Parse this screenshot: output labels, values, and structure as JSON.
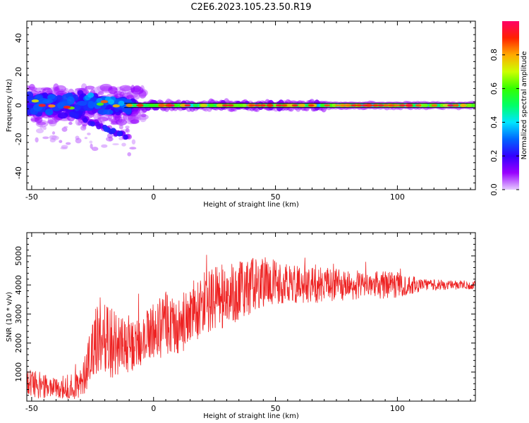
{
  "title": "C2E6.2023.105.23.50.R19",
  "chart_data": [
    {
      "type": "heatmap",
      "xlabel": "Height of straight line (km)",
      "ylabel": "Frequency (Hz)",
      "xlim": [
        -52,
        132
      ],
      "ylim": [
        -50,
        50
      ],
      "xticks": [
        -50,
        0,
        50,
        100
      ],
      "yticks": [
        40,
        20,
        0,
        -20,
        -40
      ],
      "colorbar": {
        "label": "Normalized spectral amplitude",
        "range": [
          0,
          1
        ],
        "ticks": [
          0.0,
          0.2,
          0.4,
          0.6,
          0.8
        ],
        "colors": [
          "#e6ccff",
          "#9900ff",
          "#3300ff",
          "#0066ff",
          "#00e6ff",
          "#00ff66",
          "#33ff00",
          "#ccff00",
          "#ffaa00",
          "#ff2200",
          "#ff0066"
        ]
      },
      "features": [
        {
          "name": "main band",
          "x": [
            -52,
            132
          ],
          "y": [
            0,
            0
          ],
          "width_hz": [
            14,
            3
          ]
        },
        {
          "name": "upper branch",
          "x": [
            -30,
            -10
          ],
          "y": [
            6,
            1
          ]
        },
        {
          "name": "descending branch",
          "x": [
            -35,
            -10
          ],
          "y": [
            -4,
            -19
          ]
        }
      ]
    },
    {
      "type": "line",
      "xlabel": "Height of straight line (km)",
      "ylabel": "SNR (10 * v/v)",
      "xlim": [
        -52,
        132
      ],
      "ylim": [
        0,
        5800
      ],
      "xticks": [
        -50,
        0,
        50,
        100
      ],
      "yticks": [
        1000,
        2000,
        3000,
        4000,
        5000
      ],
      "color": "#ee2222",
      "envelope": {
        "x": [
          -52,
          -40,
          -30,
          -27,
          -22,
          -15,
          -8,
          -2,
          5,
          10,
          15,
          25,
          35,
          45,
          55,
          70,
          85,
          100,
          110,
          120,
          132
        ],
        "mean": [
          600,
          500,
          500,
          1500,
          2300,
          1800,
          1900,
          2300,
          2700,
          2500,
          3000,
          3500,
          3800,
          4100,
          4000,
          4000,
          4000,
          4000,
          4000,
          4000,
          4000
        ],
        "amp": [
          500,
          400,
          450,
          1100,
          1300,
          1200,
          800,
          900,
          1100,
          1000,
          1000,
          1100,
          1100,
          900,
          700,
          600,
          500,
          450,
          220,
          160,
          150
        ]
      }
    }
  ]
}
